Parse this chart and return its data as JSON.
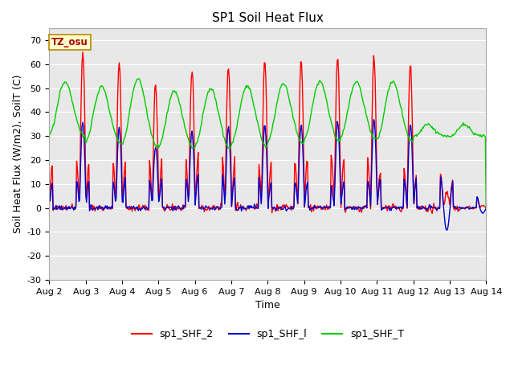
{
  "title": "SP1 Soil Heat Flux",
  "xlabel": "Time",
  "ylabel": "Soil Heat Flux (W/m2), SoilT (C)",
  "ylim": [
    -30,
    75
  ],
  "yticks": [
    -30,
    -20,
    -10,
    0,
    10,
    20,
    30,
    40,
    50,
    60,
    70
  ],
  "xtick_labels": [
    "Aug 2",
    "Aug 3",
    "Aug 4",
    "Aug 5",
    "Aug 6",
    "Aug 7",
    "Aug 8",
    "Aug 9",
    "Aug 10",
    "Aug 11",
    "Aug 12",
    "Aug 13",
    "Aug 14"
  ],
  "legend_labels": [
    "sp1_SHF_2",
    "sp1_SHF_l",
    "sp1_SHF_T"
  ],
  "legend_colors": [
    "#ff0000",
    "#0000cc",
    "#00cc00"
  ],
  "tz_label": "TZ_osu",
  "bg_color": "#e8e8e8",
  "line_colors": {
    "shf2": "#ff0000",
    "shf1": "#0000cc",
    "shfT": "#00cc00"
  }
}
